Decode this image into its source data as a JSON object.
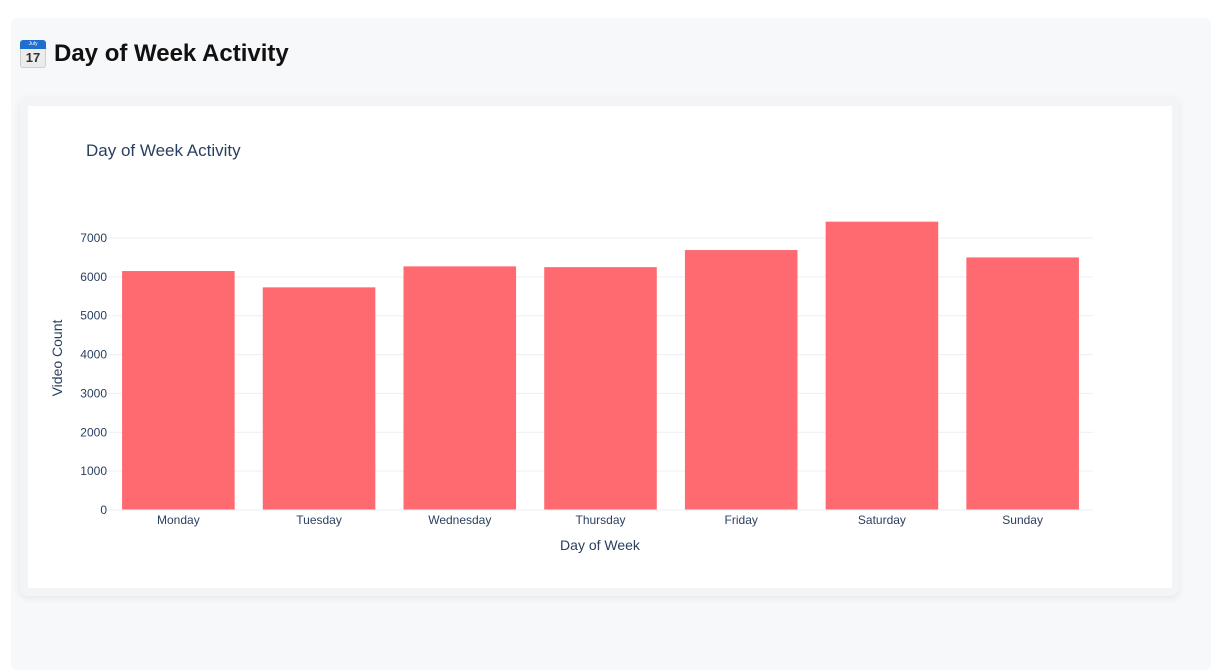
{
  "page": {
    "icon_name": "calendar-icon",
    "icon_month": "July",
    "icon_day": "17",
    "title": "Day of Week Activity"
  },
  "colors": {
    "bar": "#ff6a70",
    "grid": "#eceff3",
    "text": "#2a3f5f"
  },
  "chart_data": {
    "type": "bar",
    "title": "Day of Week Activity",
    "xlabel": "Day of Week",
    "ylabel": "Video Count",
    "categories": [
      "Monday",
      "Tuesday",
      "Wednesday",
      "Thursday",
      "Friday",
      "Saturday",
      "Sunday"
    ],
    "values": [
      6150,
      5730,
      6270,
      6250,
      6690,
      7420,
      6500
    ],
    "ylim": [
      0,
      7000
    ],
    "yticks": [
      0,
      1000,
      2000,
      3000,
      4000,
      5000,
      6000,
      7000
    ],
    "grid": true,
    "legend": false
  }
}
